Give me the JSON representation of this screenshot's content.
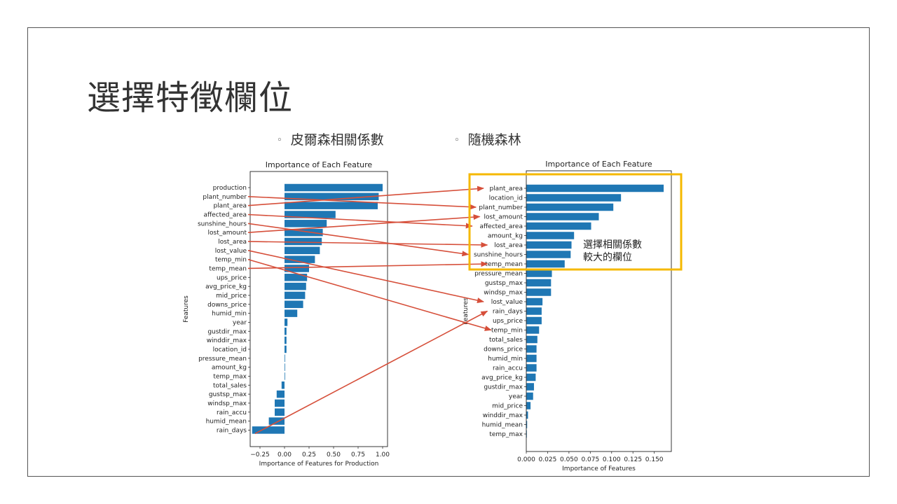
{
  "slide": {
    "title": "選擇特徵欄位",
    "bullets": [
      "皮爾森相關係數",
      "隨機森林"
    ],
    "bullet_marker": "◦",
    "highlight_note": [
      "選擇相關係數",
      "較大的欄位"
    ],
    "colors": {
      "bar": "#1f77b4",
      "arrow": "#d64f3a",
      "highlight": "#f5b800",
      "text": "#333333"
    }
  },
  "chart_data": [
    {
      "type": "bar",
      "orientation": "horizontal",
      "title": "Importance of Each Feature",
      "xlabel": "Importance of Features for Production",
      "ylabel": "Features",
      "xlim": [
        -0.35,
        1.05
      ],
      "xticks": [
        -0.25,
        0.0,
        0.25,
        0.5,
        0.75,
        1.0
      ],
      "xtick_labels": [
        "−0.25",
        "0.00",
        "0.25",
        "0.50",
        "0.75",
        "1.00"
      ],
      "categories": [
        "production",
        "plant_number",
        "plant_area",
        "affected_area",
        "sunshine_hours",
        "lost_amount",
        "lost_area",
        "lost_value",
        "temp_min",
        "temp_mean",
        "ups_price",
        "avg_price_kg",
        "mid_price",
        "downs_price",
        "humid_min",
        "year",
        "gustdir_max",
        "winddir_max",
        "location_id",
        "pressure_mean",
        "amount_kg",
        "temp_max",
        "total_sales",
        "gustsp_max",
        "windsp_max",
        "rain_accu",
        "humid_mean",
        "rain_days"
      ],
      "values": [
        1.0,
        0.96,
        0.95,
        0.52,
        0.43,
        0.39,
        0.38,
        0.36,
        0.31,
        0.25,
        0.23,
        0.22,
        0.21,
        0.19,
        0.13,
        0.03,
        0.02,
        0.02,
        0.02,
        0.005,
        0.003,
        0.0,
        -0.03,
        -0.08,
        -0.1,
        -0.1,
        -0.16,
        -0.33
      ]
    },
    {
      "type": "bar",
      "orientation": "horizontal",
      "title": "Importance of Each Feature",
      "xlabel": "Importance of Features",
      "ylabel": "Features",
      "xlim": [
        0,
        0.17
      ],
      "xticks": [
        0.0,
        0.025,
        0.05,
        0.075,
        0.1,
        0.125,
        0.15
      ],
      "xtick_labels": [
        "0.000",
        "0.025",
        "0.050",
        "0.075",
        "0.100",
        "0.125",
        "0.150"
      ],
      "categories": [
        "plant_area",
        "location_id",
        "plant_number",
        "lost_amount",
        "affected_area",
        "amount_kg",
        "lost_area",
        "sunshine_hours",
        "temp_mean",
        "pressure_mean",
        "gustsp_max",
        "windsp_max",
        "lost_value",
        "rain_days",
        "ups_price",
        "temp_min",
        "total_sales",
        "downs_price",
        "humid_min",
        "rain_accu",
        "avg_price_kg",
        "gustdir_max",
        "year",
        "mid_price",
        "winddir_max",
        "humid_mean",
        "temp_max"
      ],
      "values": [
        0.161,
        0.111,
        0.102,
        0.085,
        0.076,
        0.056,
        0.053,
        0.052,
        0.045,
        0.03,
        0.029,
        0.029,
        0.019,
        0.018,
        0.018,
        0.015,
        0.013,
        0.012,
        0.012,
        0.012,
        0.011,
        0.009,
        0.008,
        0.005,
        0.002,
        0.001,
        0.0
      ]
    }
  ],
  "connections": [
    {
      "from": "plant_number",
      "to": "plant_number"
    },
    {
      "from": "plant_area",
      "to": "plant_area"
    },
    {
      "from": "affected_area",
      "to": "affected_area"
    },
    {
      "from": "sunshine_hours",
      "to": "sunshine_hours"
    },
    {
      "from": "lost_amount",
      "to": "lost_amount"
    },
    {
      "from": "lost_area",
      "to": "lost_area"
    },
    {
      "from": "lost_value",
      "to": "lost_value"
    },
    {
      "from": "temp_min",
      "to": "temp_min"
    },
    {
      "from": "temp_mean",
      "to": "temp_mean"
    },
    {
      "from": "rain_days",
      "to": "rain_days"
    }
  ]
}
